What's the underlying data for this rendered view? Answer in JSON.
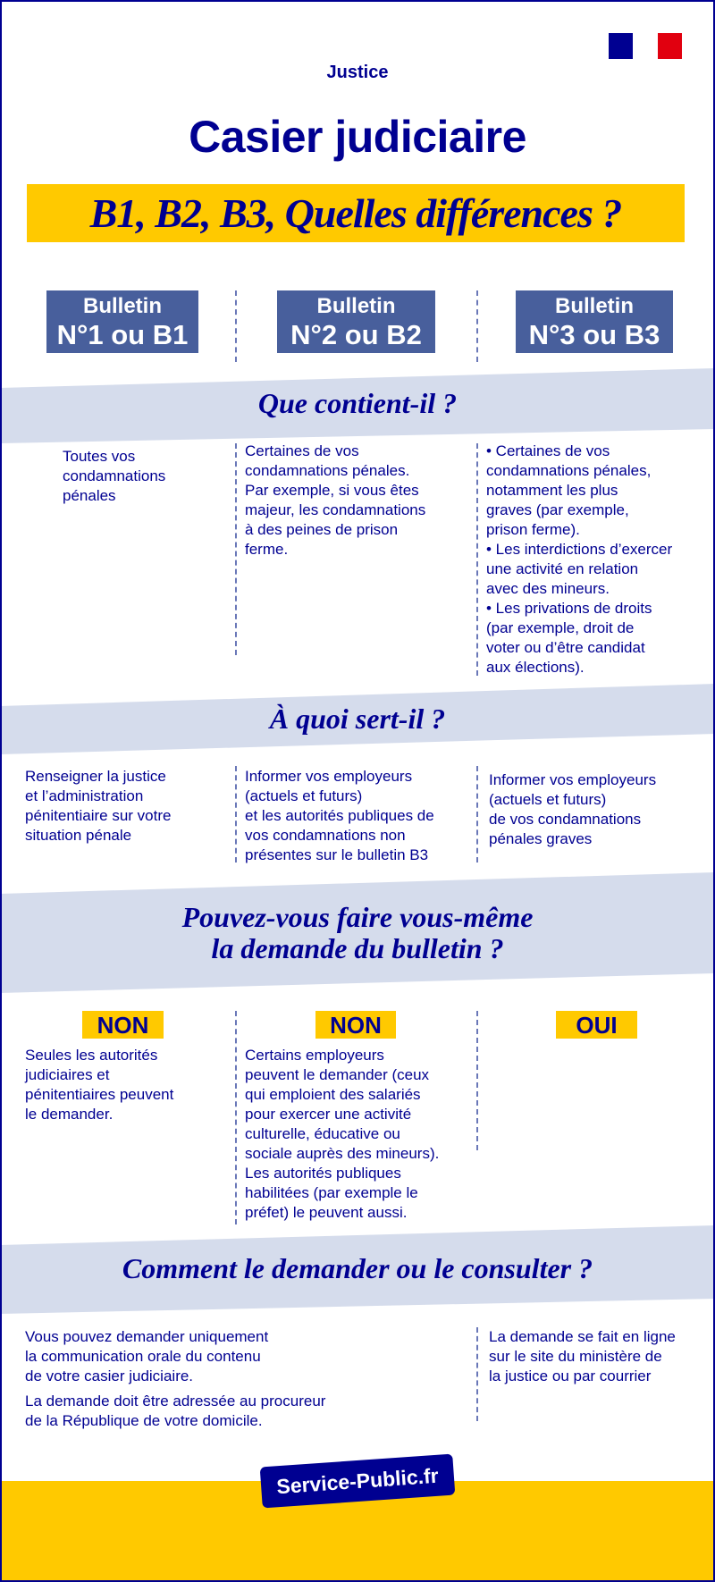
{
  "header": {
    "ministry": "Justice",
    "title": "Casier judiciaire",
    "subtitle": "B1, B2, B3, Quelles différences ?",
    "flag_colors": [
      "#000091",
      "#ffffff",
      "#e1000f"
    ]
  },
  "bulletins": [
    {
      "line1": "Bulletin",
      "line2": "N°1 ou B1"
    },
    {
      "line1": "Bulletin",
      "line2": "N°2 ou B2"
    },
    {
      "line1": "Bulletin",
      "line2": "N°3 ou B3"
    }
  ],
  "sections": {
    "contenu": {
      "title": "Que contient-il ?",
      "b1": [
        "Toutes vos",
        "condamnations",
        "pénales"
      ],
      "b2": [
        "Certaines de vos",
        "condamnations pénales.",
        "Par exemple, si vous êtes",
        "majeur, les condamnations",
        "à des peines de prison",
        "ferme."
      ],
      "b3": [
        "• Certaines de vos",
        "condamnations pénales,",
        "notamment les plus",
        "graves (par exemple,",
        "prison ferme).",
        "• Les interdictions d’exercer",
        "une activité en relation",
        "avec des mineurs.",
        "• Les privations de droits",
        "(par exemple, droit de",
        "voter ou d’être candidat",
        "aux élections)."
      ]
    },
    "usage": {
      "title": "À quoi sert-il ?",
      "b1": [
        "Renseigner la justice",
        "et l’administration",
        "pénitentiaire sur votre",
        "situation pénale"
      ],
      "b2": [
        "Informer vos employeurs",
        "(actuels et futurs)",
        "et les autorités publiques de",
        "vos condamnations non",
        "présentes sur le bulletin B3"
      ],
      "b3": [
        "Informer vos employeurs",
        "(actuels et futurs)",
        "de vos condamnations",
        "pénales graves"
      ]
    },
    "demande": {
      "title_line1": "Pouvez-vous faire vous-même",
      "title_line2": "la demande du bulletin ?",
      "b1_answer": "NON",
      "b2_answer": "NON",
      "b3_answer": "OUI",
      "b1": [
        "Seules les autorités",
        "judiciaires et",
        "pénitentiaires peuvent",
        "le demander."
      ],
      "b2": [
        "Certains employeurs",
        "peuvent le demander (ceux",
        "qui emploient des salariés",
        "pour exercer une activité",
        "culturelle, éducative ou",
        "sociale auprès des mineurs).",
        "Les autorités publiques",
        "habilitées (par exemple le",
        "préfet) le peuvent aussi."
      ]
    },
    "consulter": {
      "title": "Comment le demander ou le consulter ?",
      "b1_p1": [
        "Vous pouvez demander uniquement",
        "la communication orale du contenu",
        "de votre casier judiciaire."
      ],
      "b1_p2": [
        "La demande doit être adressée au procureur",
        "de la République de votre domicile."
      ],
      "b3": [
        "La demande se fait en ligne",
        "sur le site du ministère de",
        "la justice ou par courrier"
      ]
    }
  },
  "footer": {
    "logo": "Service-Public.fr"
  },
  "colors": {
    "navy": "#000091",
    "yellow": "#ffc900",
    "band": "#d5dcec",
    "bulletin": "#485f9c"
  }
}
